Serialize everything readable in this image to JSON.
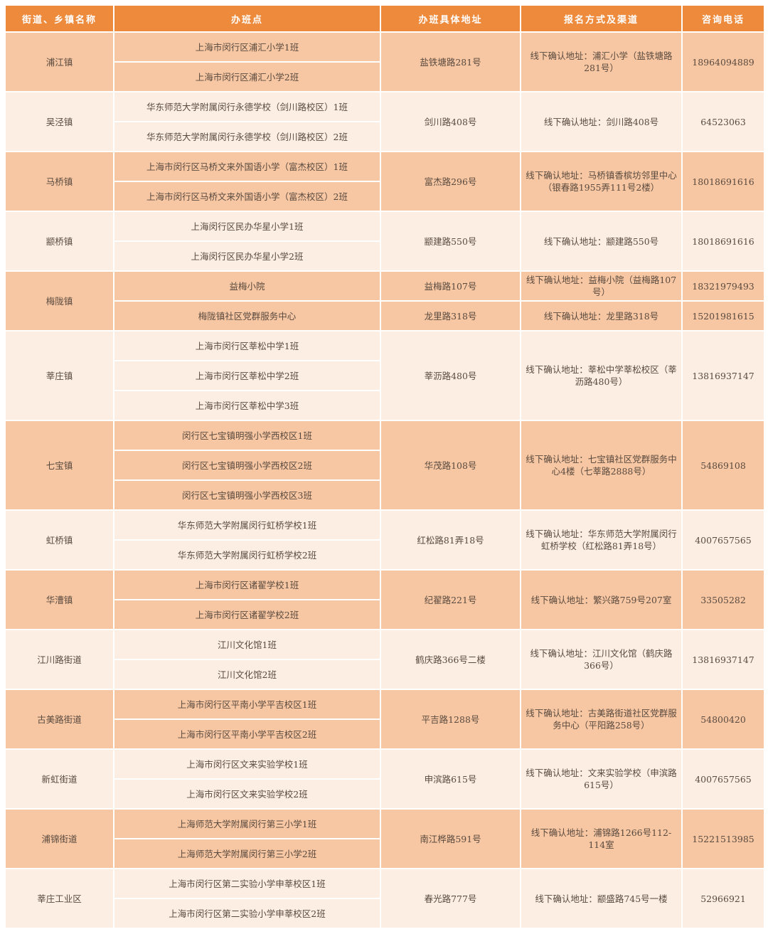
{
  "header": [
    "街道、乡镇名称",
    "办班点",
    "办班具体地址",
    "报名方式及渠道",
    "咨询电话"
  ],
  "colors": {
    "header": "#EE8A3C",
    "row_orange": "#F7C7A3",
    "row_light": "#FCEEE3",
    "text": "#5a4a3f"
  },
  "groups": [
    {
      "town": "浦江镇",
      "tone": "orange",
      "sites": [
        "上海市闵行区浦汇小学1班",
        "上海市闵行区浦汇小学2班"
      ],
      "entries": [
        {
          "address": "盐铁塘路281号",
          "signup": "线下确认地址：浦汇小学（盐铁塘路281号）",
          "phone": "18964094889"
        }
      ]
    },
    {
      "town": "吴泾镇",
      "tone": "light",
      "sites": [
        "华东师范大学附属闵行永德学校（剑川路校区）1班",
        "华东师范大学附属闵行永德学校（剑川路校区）2班"
      ],
      "entries": [
        {
          "address": "剑川路408号",
          "signup": "线下确认地址：剑川路408号",
          "phone": "64523063"
        }
      ]
    },
    {
      "town": "马桥镇",
      "tone": "orange",
      "sites": [
        "上海市闵行区马桥文来外国语小学（富杰校区）1班",
        "上海市闵行区马桥文来外国语小学（富杰校区）2班"
      ],
      "entries": [
        {
          "address": "富杰路296号",
          "signup": "线下确认地址：马桥镇香槟坊邻里中心（银春路1955弄111号2楼）",
          "phone": "18018691616"
        }
      ]
    },
    {
      "town": "颛桥镇",
      "tone": "light",
      "sites": [
        "上海闵行区民办华星小学1班",
        "上海闵行区民办华星小学2班"
      ],
      "entries": [
        {
          "address": "颛建路550号",
          "signup": "线下确认地址：颛建路550号",
          "phone": "18018691616"
        }
      ]
    },
    {
      "town": "梅陇镇",
      "tone": "orange",
      "sites": [
        "益梅小院",
        "梅陇镇社区党群服务中心"
      ],
      "entries": [
        {
          "address": "益梅路107号",
          "signup": "线下确认地址：益梅小院（益梅路107号）",
          "phone": "18321979493"
        },
        {
          "address": "龙里路318号",
          "signup": "线下确认地址：龙里路318号",
          "phone": "15201981615"
        }
      ]
    },
    {
      "town": "莘庄镇",
      "tone": "light",
      "sites": [
        "上海市闵行区莘松中学1班",
        "上海市闵行区莘松中学2班",
        "上海市闵行区莘松中学3班"
      ],
      "entries": [
        {
          "address": "莘沥路480号",
          "signup": "线下确认地址：莘松中学莘松校区（莘沥路480号）",
          "phone": "13816937147"
        }
      ]
    },
    {
      "town": "七宝镇",
      "tone": "orange",
      "sites": [
        "闵行区七宝镇明强小学西校区1班",
        "闵行区七宝镇明强小学西校区2班",
        "闵行区七宝镇明强小学西校区3班"
      ],
      "entries": [
        {
          "address": "华茂路108号",
          "signup": "线下确认地址：七宝镇社区党群服务中心4楼（七莘路2888号）",
          "phone": "54869108"
        }
      ]
    },
    {
      "town": "虹桥镇",
      "tone": "light",
      "sites": [
        "华东师范大学附属闵行虹桥学校1班",
        "华东师范大学附属闵行虹桥学校2班"
      ],
      "entries": [
        {
          "address": "红松路81弄18号",
          "signup": "线下确认地址：华东师范大学附属闵行虹桥学校（红松路81弄18号）",
          "phone": "4007657565"
        }
      ]
    },
    {
      "town": "华漕镇",
      "tone": "orange",
      "sites": [
        "上海市闵行区诸翟学校1班",
        "上海市闵行区诸翟学校2班"
      ],
      "entries": [
        {
          "address": "纪翟路221号",
          "signup": "线下确认地址：繁兴路759号207室",
          "phone": "33505282"
        }
      ]
    },
    {
      "town": "江川路街道",
      "tone": "light",
      "sites": [
        "江川文化馆1班",
        "江川文化馆2班"
      ],
      "entries": [
        {
          "address": "鹤庆路366号二楼",
          "signup": "线下确认地址：江川文化馆（鹤庆路366号）",
          "phone": "13816937147"
        }
      ]
    },
    {
      "town": "古美路街道",
      "tone": "orange",
      "sites": [
        "上海市闵行区平南小学平吉校区1班",
        "上海市闵行区平南小学平吉校区2班"
      ],
      "entries": [
        {
          "address": "平吉路1288号",
          "signup": "线下确认地址：古美路街道社区党群服务中心（平阳路258号）",
          "phone": "54800420"
        }
      ]
    },
    {
      "town": "新虹街道",
      "tone": "light",
      "sites": [
        "上海市闵行区文来实验学校1班",
        "上海市闵行区文来实验学校2班"
      ],
      "entries": [
        {
          "address": "申滨路615号",
          "signup": "线下确认地址：文来实验学校（申滨路615号）",
          "phone": "4007657565"
        }
      ]
    },
    {
      "town": "浦锦街道",
      "tone": "orange",
      "sites": [
        "上海师范大学附属闵行第三小学1班",
        "上海师范大学附属闵行第三小学2班"
      ],
      "entries": [
        {
          "address": "南江桦路591号",
          "signup": "线下确认地址：浦锦路1266号112-114室",
          "phone": "15221513985"
        }
      ]
    },
    {
      "town": "莘庄工业区",
      "tone": "light",
      "sites": [
        "上海市闵行区第二实验小学申莘校区1班",
        "上海市闵行区第二实验小学申莘校区2班"
      ],
      "entries": [
        {
          "address": "春光路777号",
          "signup": "线下确认地址：颛盛路745号一楼",
          "phone": "52966921"
        }
      ]
    }
  ]
}
